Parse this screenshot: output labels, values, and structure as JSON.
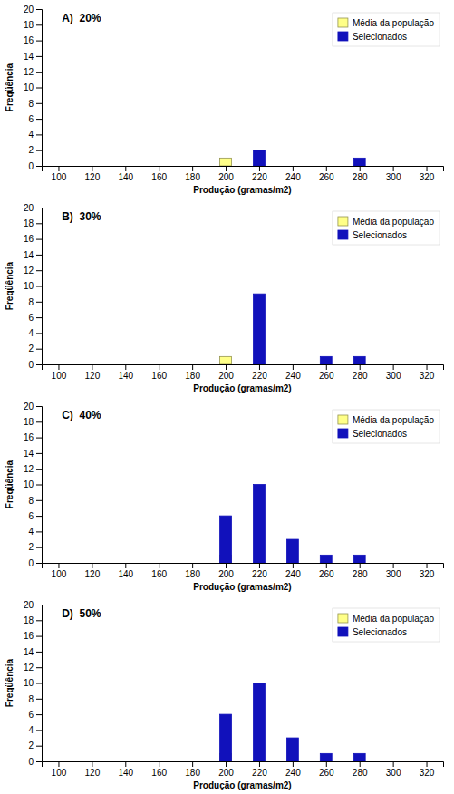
{
  "chart_data": [
    {
      "type": "bar",
      "title": "A)  20%",
      "xlabel": "Produção (gramas/m2)",
      "ylabel": "Freqüência",
      "xlim": [
        90,
        330
      ],
      "xticks": [
        100,
        120,
        140,
        160,
        180,
        200,
        220,
        240,
        260,
        280,
        300,
        320
      ],
      "ylim": [
        0,
        20
      ],
      "yticks": [
        0,
        2,
        4,
        6,
        8,
        10,
        12,
        14,
        16,
        18,
        20
      ],
      "legend": "upper right",
      "series": [
        {
          "name": "Média da população",
          "color": "#FFFF88",
          "x": [
            200
          ],
          "values": [
            1
          ]
        },
        {
          "name": "Selecionados",
          "color": "#1111BB",
          "x": [
            220,
            280
          ],
          "values": [
            2,
            1
          ]
        }
      ]
    },
    {
      "type": "bar",
      "title": "B)  30%",
      "xlabel": "Produção (gramas/m2)",
      "ylabel": "Freqüência",
      "xlim": [
        90,
        330
      ],
      "xticks": [
        100,
        120,
        140,
        160,
        180,
        200,
        220,
        240,
        260,
        280,
        300,
        320
      ],
      "ylim": [
        0,
        20
      ],
      "yticks": [
        0,
        2,
        4,
        6,
        8,
        10,
        12,
        14,
        16,
        18,
        20
      ],
      "legend": "upper right",
      "series": [
        {
          "name": "Média da população",
          "color": "#FFFF88",
          "x": [
            200
          ],
          "values": [
            1
          ]
        },
        {
          "name": "Selecionados",
          "color": "#1111BB",
          "x": [
            220,
            260,
            280
          ],
          "values": [
            9,
            1,
            1
          ]
        }
      ]
    },
    {
      "type": "bar",
      "title": "C)  40%",
      "xlabel": "Produção (gramas/m2)",
      "ylabel": "Freqüência",
      "xlim": [
        90,
        330
      ],
      "xticks": [
        100,
        120,
        140,
        160,
        180,
        200,
        220,
        240,
        260,
        280,
        300,
        320
      ],
      "ylim": [
        0,
        20
      ],
      "yticks": [
        0,
        2,
        4,
        6,
        8,
        10,
        12,
        14,
        16,
        18,
        20
      ],
      "legend": "upper right",
      "series": [
        {
          "name": "Média da população",
          "color": "#FFFF88",
          "x": [
            200
          ],
          "values": [
            1
          ]
        },
        {
          "name": "Selecionados",
          "color": "#1111BB",
          "x": [
            200,
            220,
            240,
            260,
            280
          ],
          "values": [
            6,
            10,
            3,
            1,
            1
          ]
        }
      ]
    },
    {
      "type": "bar",
      "title": "D)  50%",
      "xlabel": "Produção (gramas/m2)",
      "ylabel": "Freqüência",
      "xlim": [
        90,
        330
      ],
      "xticks": [
        100,
        120,
        140,
        160,
        180,
        200,
        220,
        240,
        260,
        280,
        300,
        320
      ],
      "ylim": [
        0,
        20
      ],
      "yticks": [
        0,
        2,
        4,
        6,
        8,
        10,
        12,
        14,
        16,
        18,
        20
      ],
      "legend": "upper right",
      "series": [
        {
          "name": "Média da população",
          "color": "#FFFF88",
          "x": [
            200
          ],
          "values": [
            1
          ]
        },
        {
          "name": "Selecionados",
          "color": "#1111BB",
          "x": [
            200,
            220,
            240,
            260,
            280
          ],
          "values": [
            6,
            10,
            3,
            1,
            1
          ]
        }
      ]
    }
  ]
}
